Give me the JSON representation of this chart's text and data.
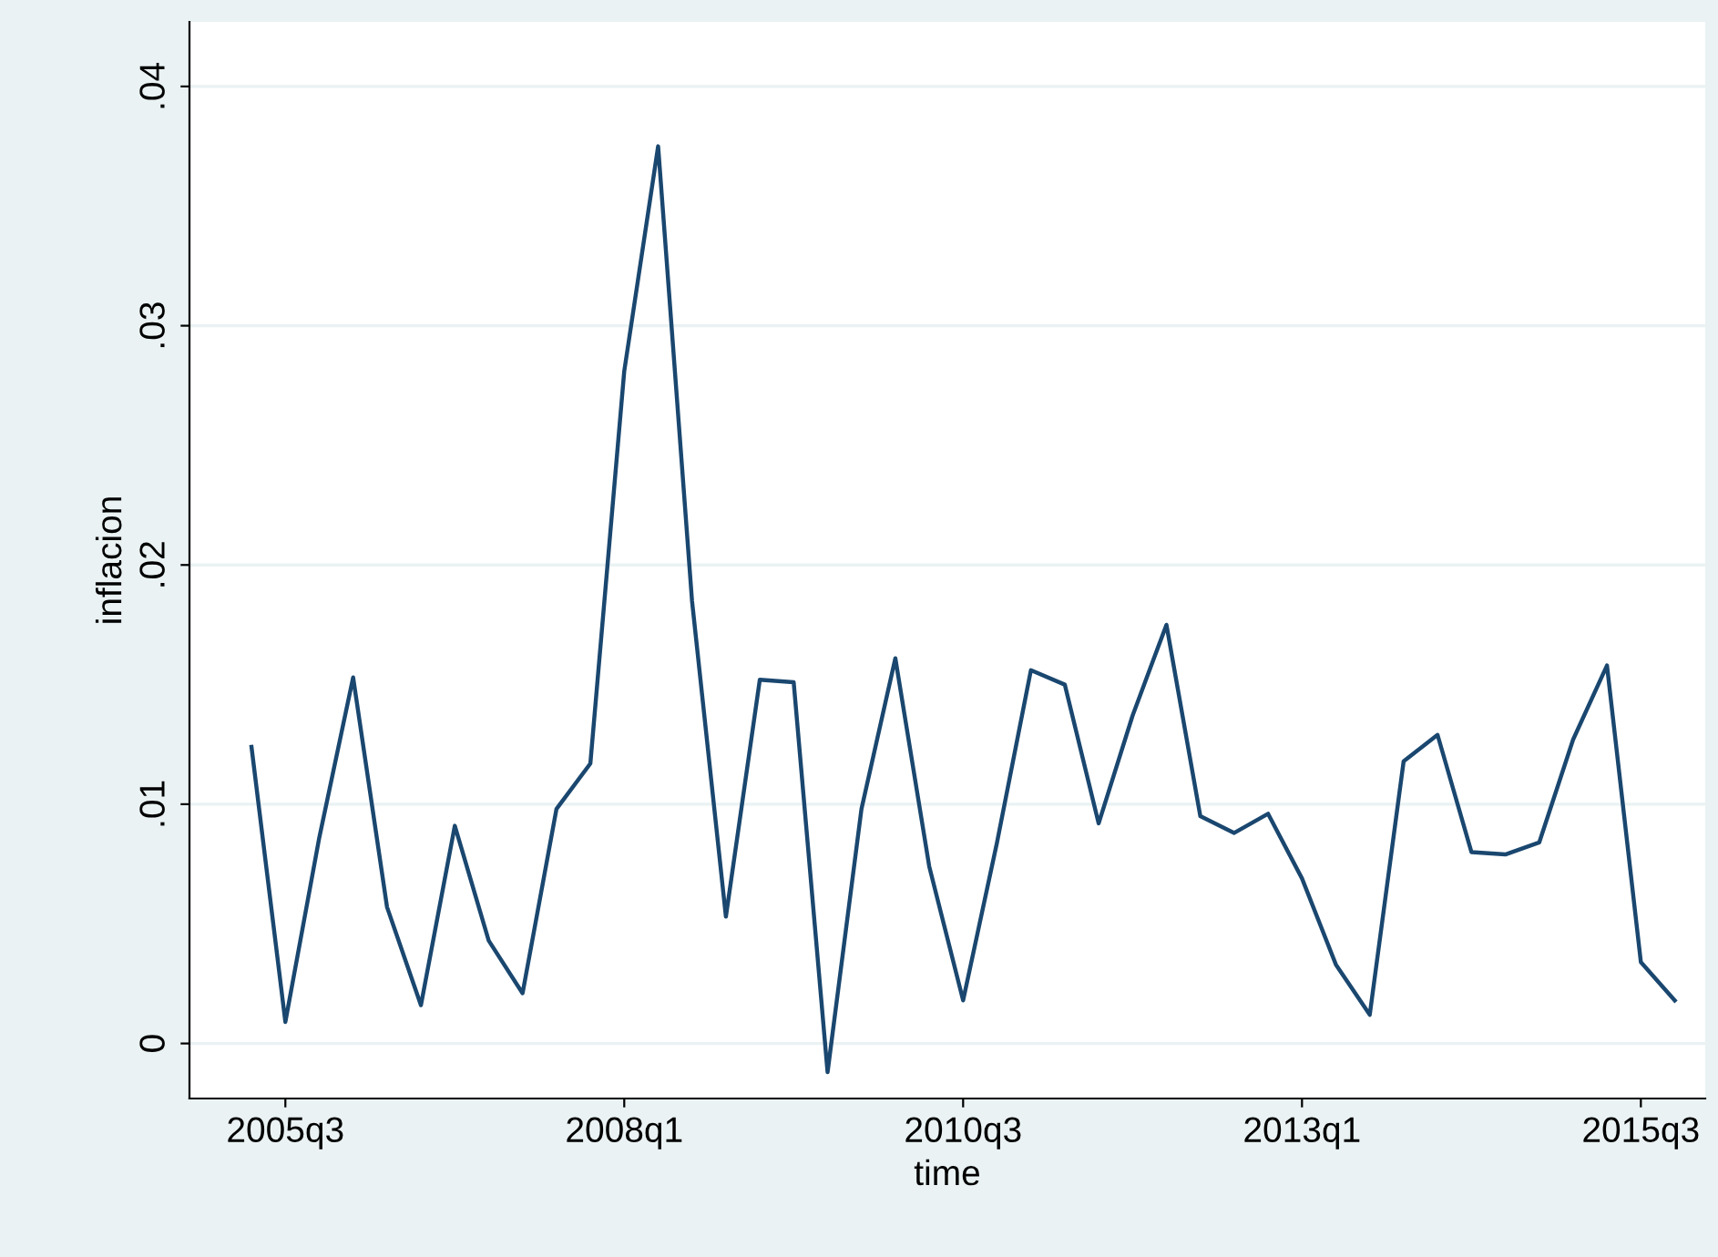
{
  "chart_data": {
    "type": "line",
    "xlabel": "time",
    "ylabel": "inflacion",
    "categories": [
      null,
      "2005q3",
      null,
      null,
      null,
      null,
      null,
      null,
      null,
      null,
      null,
      "2008q1",
      null,
      null,
      null,
      null,
      null,
      null,
      null,
      null,
      null,
      "2010q3",
      null,
      null,
      null,
      null,
      null,
      null,
      null,
      null,
      null,
      "2013q1",
      null,
      null,
      null,
      null,
      null,
      null,
      null,
      null,
      null,
      "2015q3",
      null
    ],
    "series": [
      {
        "color": "#1a476f",
        "values": [
          0.0124,
          0.0009,
          0.0086,
          0.0153,
          0.0057,
          0.0016,
          0.0091,
          0.0043,
          0.0021,
          0.0098,
          0.0117,
          0.0281,
          0.0375,
          0.0185,
          0.0053,
          0.0152,
          0.0151,
          -0.0012,
          0.0098,
          0.0161,
          0.0074,
          0.0018,
          0.0084,
          0.0156,
          0.015,
          0.0092,
          0.0137,
          0.0175,
          0.0095,
          0.0088,
          0.0096,
          0.0069,
          0.0033,
          0.0012,
          0.0118,
          0.0129,
          0.008,
          0.0079,
          0.0084,
          0.0127,
          0.0158,
          0.0034,
          0.0018
        ]
      }
    ],
    "ylim": [
      -0.0023,
      0.0427
    ],
    "yticks": [
      {
        "value": 0,
        "label": "0"
      },
      {
        "value": 0.01,
        "label": ".01"
      },
      {
        "value": 0.02,
        "label": ".02"
      },
      {
        "value": 0.03,
        "label": ".03"
      },
      {
        "value": 0.04,
        "label": ".04"
      }
    ],
    "grid": "y",
    "legend": false,
    "marker": "none",
    "line_style": "solid"
  }
}
